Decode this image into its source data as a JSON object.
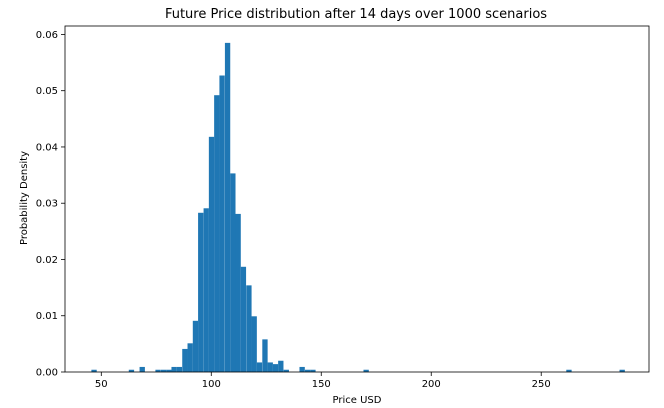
{
  "chart_data": {
    "type": "bar",
    "subtype": "histogram",
    "title": "Future Price distribution after 14 days over 1000 scenarios",
    "xlabel": "Price USD",
    "ylabel": "Probability Density",
    "xlim": [
      33.5,
      299
    ],
    "ylim": [
      0,
      0.0615
    ],
    "xticks": [
      50,
      100,
      150,
      200,
      250
    ],
    "yticks": [
      0.0,
      0.01,
      0.02,
      0.03,
      0.04,
      0.05,
      0.06
    ],
    "ytick_labels": [
      "0.00",
      "0.01",
      "0.02",
      "0.03",
      "0.04",
      "0.05",
      "0.06"
    ],
    "grid": false,
    "color": "#1f77b4",
    "bin_width": 2.42,
    "bin_starts": [
      45.5,
      62.5,
      67.4,
      74.6,
      77.1,
      79.5,
      81.9,
      84.3,
      86.8,
      89.2,
      91.6,
      94.0,
      96.5,
      98.9,
      101.3,
      103.7,
      106.2,
      108.6,
      111.0,
      113.4,
      115.9,
      118.3,
      120.7,
      123.2,
      125.6,
      128.0,
      130.4,
      132.9,
      135.3,
      140.1,
      142.6,
      145.0,
      169.2,
      261.4,
      285.6
    ],
    "values": [
      0.0004,
      0.0004,
      0.0009,
      0.0004,
      0.0004,
      0.0004,
      0.0009,
      0.0009,
      0.0041,
      0.0051,
      0.0091,
      0.0283,
      0.0291,
      0.0418,
      0.0492,
      0.0527,
      0.0585,
      0.0353,
      0.0281,
      0.0187,
      0.0154,
      0.0099,
      0.0017,
      0.0058,
      0.0017,
      0.0014,
      0.002,
      0.0004,
      0.0,
      0.0009,
      0.0004,
      0.0004,
      0.0004,
      0.0004,
      0.0004
    ]
  }
}
